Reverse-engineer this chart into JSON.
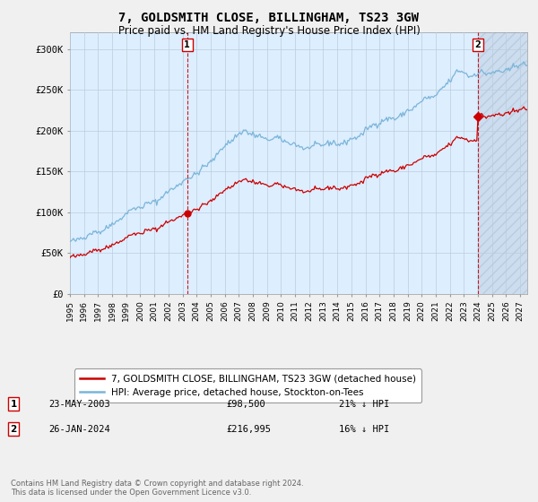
{
  "title": "7, GOLDSMITH CLOSE, BILLINGHAM, TS23 3GW",
  "subtitle": "Price paid vs. HM Land Registry's House Price Index (HPI)",
  "ylim": [
    0,
    320000
  ],
  "yticks": [
    0,
    50000,
    100000,
    150000,
    200000,
    250000,
    300000
  ],
  "ytick_labels": [
    "£0",
    "£50K",
    "£100K",
    "£150K",
    "£200K",
    "£250K",
    "£300K"
  ],
  "hpi_color": "#7ab5d9",
  "sold_color": "#cc0000",
  "legend_sold": "7, GOLDSMITH CLOSE, BILLINGHAM, TS23 3GW (detached house)",
  "legend_hpi": "HPI: Average price, detached house, Stockton-on-Tees",
  "note1_num": "1",
  "note1_date": "23-MAY-2003",
  "note1_price": "£98,500",
  "note1_hpi": "21% ↓ HPI",
  "note2_num": "2",
  "note2_date": "26-JAN-2024",
  "note2_price": "£216,995",
  "note2_hpi": "16% ↓ HPI",
  "footer": "Contains HM Land Registry data © Crown copyright and database right 2024.\nThis data is licensed under the Open Government Licence v3.0.",
  "bg_color": "#f0f0f0",
  "plot_bg": "#ddeeff",
  "grid_color": "#bbccdd"
}
